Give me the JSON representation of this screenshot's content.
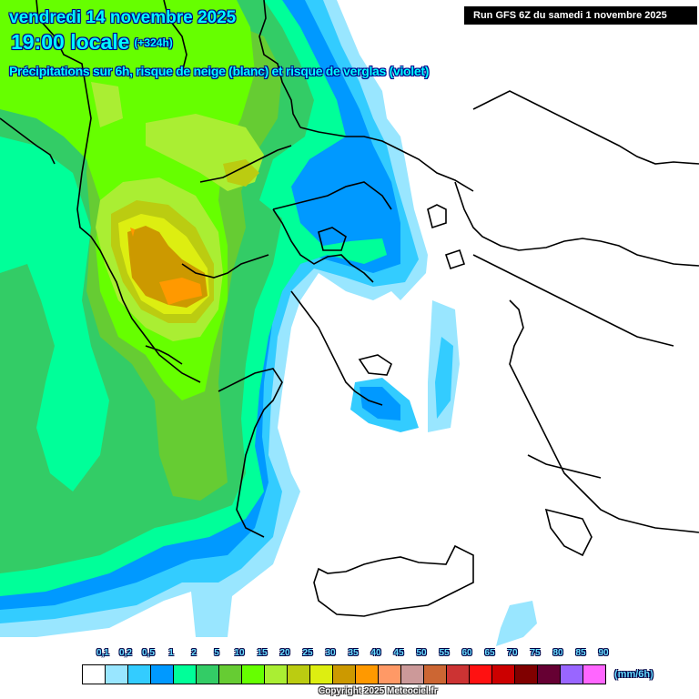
{
  "header": {
    "date": "vendredi 14 novembre 2025",
    "time": "19:00 locale",
    "lead_time": "(+324h)",
    "subtitle": "Précipitations sur 6h, risque de neige (blanc) et risque de verglas (violet)",
    "run_info": "Run GFS 6Z du samedi 1 novembre 2025"
  },
  "map": {
    "region": "Greece / Balkans / Aegean / Western Turkey",
    "field": "6h precipitation",
    "colors": {
      "background": "#ffffff",
      "coastline": "#000000"
    }
  },
  "legend": {
    "unit": "(mm/6h)",
    "labels": [
      "0,1",
      "0,2",
      "0,5",
      "1",
      "2",
      "5",
      "10",
      "15",
      "20",
      "25",
      "30",
      "35",
      "40",
      "45",
      "50",
      "55",
      "60",
      "65",
      "70",
      "75",
      "80",
      "85",
      "90"
    ],
    "colors": [
      "#ffffff",
      "#99e6ff",
      "#33ccff",
      "#0099ff",
      "#00ff99",
      "#33cc66",
      "#66cc33",
      "#66ff00",
      "#aaee33",
      "#bbcc11",
      "#ddee11",
      "#cc9900",
      "#ff9900",
      "#ff9966",
      "#cc9999",
      "#cc6633",
      "#cc3333",
      "#ff1111",
      "#cc0000",
      "#800000",
      "#660033",
      "#9966ff",
      "#ff66ff"
    ]
  },
  "footer": {
    "copyright": "Copyright 2025 Meteociel.fr"
  }
}
